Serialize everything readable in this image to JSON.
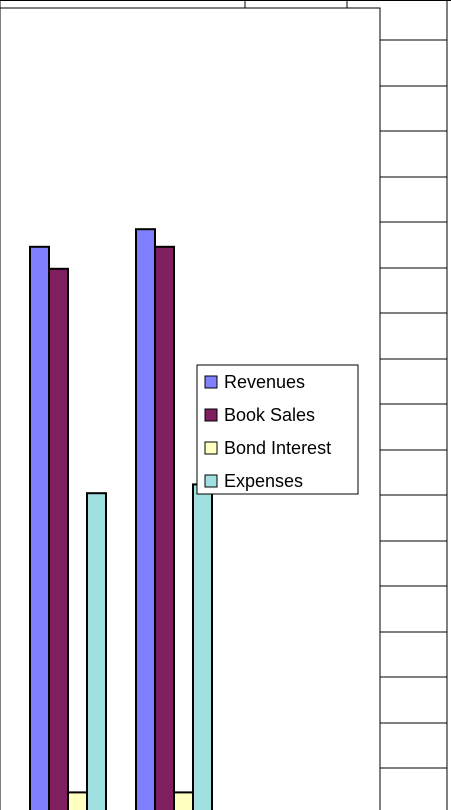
{
  "chart_data": {
    "type": "bar",
    "categories": [
      "",
      ""
    ],
    "series": [
      {
        "name": "Revenues",
        "color": "#8080ff",
        "values": [
          128,
          132
        ]
      },
      {
        "name": "Book Sales",
        "color": "#7f1f5f",
        "values": [
          123,
          128
        ]
      },
      {
        "name": "Bond Interest",
        "color": "#ffffc0",
        "values": [
          4,
          4
        ]
      },
      {
        "name": "Expenses",
        "color": "#a0e0e0",
        "values": [
          72,
          74
        ]
      }
    ],
    "legend_position": "right",
    "grid": false,
    "ylim": [
      0,
      175
    ],
    "title": "",
    "xlabel": "",
    "ylabel": ""
  }
}
